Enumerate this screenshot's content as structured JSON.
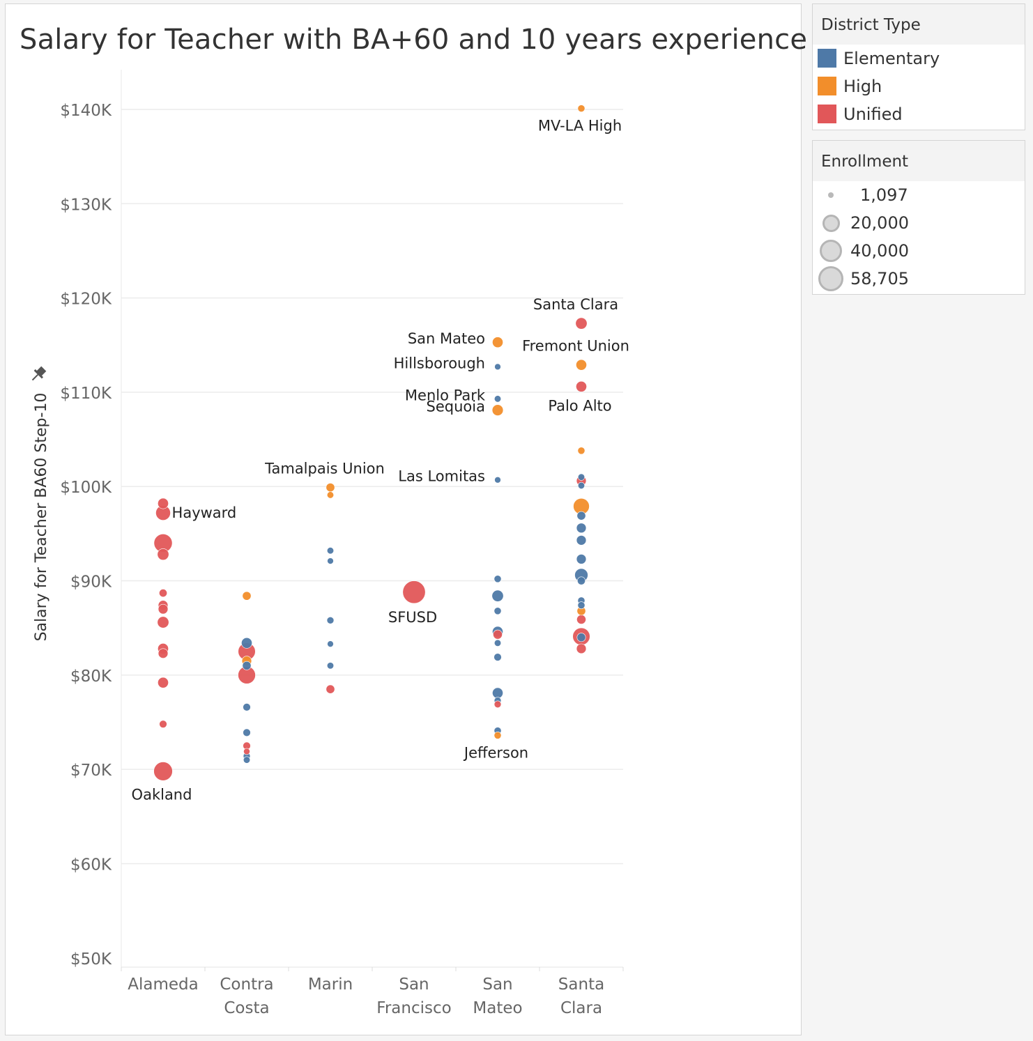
{
  "chart_data": {
    "type": "scatter",
    "title": "Salary for Teacher with BA+60 and 10 years experience",
    "ylabel": "Salary for Teacher BA60 Step-10",
    "xlabel": "",
    "ylim": [
      50000,
      142000
    ],
    "yticks": [
      50000,
      60000,
      70000,
      80000,
      90000,
      100000,
      110000,
      120000,
      130000,
      140000
    ],
    "ytick_labels": [
      "$50K",
      "$60K",
      "$70K",
      "$80K",
      "$90K",
      "$100K",
      "$110K",
      "$120K",
      "$130K",
      "$140K"
    ],
    "grid": true,
    "categories": [
      "Alameda",
      "Contra Costa",
      "Marin",
      "San Francisco",
      "San Mateo",
      "Santa Clara"
    ],
    "category_labels": [
      [
        "Alameda"
      ],
      [
        "Contra",
        "Costa"
      ],
      [
        "Marin"
      ],
      [
        "San",
        "Francisco"
      ],
      [
        "San",
        "Mateo"
      ],
      [
        "Santa",
        "Clara"
      ]
    ],
    "legend": {
      "color_title": "District Type",
      "types": [
        {
          "name": "Elementary",
          "color": "#4e79a7"
        },
        {
          "name": "High",
          "color": "#f28e2b"
        },
        {
          "name": "Unified",
          "color": "#e15759"
        }
      ],
      "size_title": "Enrollment",
      "sizes": [
        {
          "label": "1,097",
          "value": 1097
        },
        {
          "label": "20,000",
          "value": 20000
        },
        {
          "label": "40,000",
          "value": 40000
        },
        {
          "label": "58,705",
          "value": 58705
        }
      ],
      "placement": "right"
    },
    "points": [
      {
        "county": "Alameda",
        "type": "Unified",
        "salary": 98200,
        "enrollment": 8000
      },
      {
        "county": "Alameda",
        "type": "Unified",
        "salary": 97200,
        "enrollment": 20000,
        "label": "Hayward",
        "label_pos": "right"
      },
      {
        "county": "Alameda",
        "type": "Unified",
        "salary": 94000,
        "enrollment": 35000
      },
      {
        "county": "Alameda",
        "type": "Unified",
        "salary": 92800,
        "enrollment": 10000
      },
      {
        "county": "Alameda",
        "type": "Unified",
        "salary": 88700,
        "enrollment": 3000
      },
      {
        "county": "Alameda",
        "type": "Unified",
        "salary": 87400,
        "enrollment": 6000
      },
      {
        "county": "Alameda",
        "type": "Unified",
        "salary": 87000,
        "enrollment": 6000
      },
      {
        "county": "Alameda",
        "type": "Unified",
        "salary": 85600,
        "enrollment": 10000
      },
      {
        "county": "Alameda",
        "type": "Unified",
        "salary": 82800,
        "enrollment": 8000
      },
      {
        "county": "Alameda",
        "type": "Unified",
        "salary": 82300,
        "enrollment": 6000
      },
      {
        "county": "Alameda",
        "type": "Unified",
        "salary": 79200,
        "enrollment": 8000
      },
      {
        "county": "Alameda",
        "type": "Unified",
        "salary": 74800,
        "enrollment": 2500
      },
      {
        "county": "Alameda",
        "type": "Unified",
        "salary": 69800,
        "enrollment": 37000,
        "label": "Oakland",
        "label_pos": "below"
      },
      {
        "county": "Contra Costa",
        "type": "High",
        "salary": 88400,
        "enrollment": 4000
      },
      {
        "county": "Contra Costa",
        "type": "Elementary",
        "salary": 83400,
        "enrollment": 8000
      },
      {
        "county": "Contra Costa",
        "type": "Unified",
        "salary": 82500,
        "enrollment": 30000
      },
      {
        "county": "Contra Costa",
        "type": "High",
        "salary": 81500,
        "enrollment": 6000
      },
      {
        "county": "Contra Costa",
        "type": "Elementary",
        "salary": 81000,
        "enrollment": 4000
      },
      {
        "county": "Contra Costa",
        "type": "Unified",
        "salary": 80000,
        "enrollment": 31000
      },
      {
        "county": "Contra Costa",
        "type": "Elementary",
        "salary": 76600,
        "enrollment": 2500
      },
      {
        "county": "Contra Costa",
        "type": "Elementary",
        "salary": 73900,
        "enrollment": 2500
      },
      {
        "county": "Contra Costa",
        "type": "Unified",
        "salary": 72500,
        "enrollment": 2500
      },
      {
        "county": "Contra Costa",
        "type": "Unified",
        "salary": 71900,
        "enrollment": 1200
      },
      {
        "county": "Contra Costa",
        "type": "Elementary",
        "salary": 71400,
        "enrollment": 1800
      },
      {
        "county": "Contra Costa",
        "type": "Elementary",
        "salary": 71000,
        "enrollment": 1500
      },
      {
        "county": "Marin",
        "type": "High",
        "salary": 99900,
        "enrollment": 4000,
        "label": "Tamalpais Union",
        "label_pos": "above"
      },
      {
        "county": "Marin",
        "type": "High",
        "salary": 99100,
        "enrollment": 1500
      },
      {
        "county": "Marin",
        "type": "Elementary",
        "salary": 93200,
        "enrollment": 1500
      },
      {
        "county": "Marin",
        "type": "Elementary",
        "salary": 92100,
        "enrollment": 1097
      },
      {
        "county": "Marin",
        "type": "Elementary",
        "salary": 85800,
        "enrollment": 1800
      },
      {
        "county": "Marin",
        "type": "Elementary",
        "salary": 83300,
        "enrollment": 1097
      },
      {
        "county": "Marin",
        "type": "Elementary",
        "salary": 81000,
        "enrollment": 1500
      },
      {
        "county": "Marin",
        "type": "Unified",
        "salary": 78500,
        "enrollment": 4000
      },
      {
        "county": "San Francisco",
        "type": "Unified",
        "salary": 88800,
        "enrollment": 58705,
        "label": "SFUSD",
        "label_pos": "below"
      },
      {
        "county": "San Mateo",
        "type": "High",
        "salary": 115300,
        "enrollment": 8000,
        "label": "San Mateo",
        "label_pos": "left"
      },
      {
        "county": "San Mateo",
        "type": "Elementary",
        "salary": 112700,
        "enrollment": 1097,
        "label": "Hillsborough",
        "label_pos": "left"
      },
      {
        "county": "San Mateo",
        "type": "Elementary",
        "salary": 109300,
        "enrollment": 1500,
        "label": "Menlo Park",
        "label_pos": "left"
      },
      {
        "county": "San Mateo",
        "type": "High",
        "salary": 108100,
        "enrollment": 9000,
        "label": "Sequoia",
        "label_pos": "left"
      },
      {
        "county": "San Mateo",
        "type": "Elementary",
        "salary": 100700,
        "enrollment": 1097,
        "label": "Las Lomitas",
        "label_pos": "left"
      },
      {
        "county": "San Mateo",
        "type": "Elementary",
        "salary": 90200,
        "enrollment": 2000
      },
      {
        "county": "San Mateo",
        "type": "Elementary",
        "salary": 88400,
        "enrollment": 10000
      },
      {
        "county": "San Mateo",
        "type": "Elementary",
        "salary": 86800,
        "enrollment": 2000
      },
      {
        "county": "San Mateo",
        "type": "Unified",
        "salary": 84300,
        "enrollment": 5000
      },
      {
        "county": "San Mateo",
        "type": "Elementary",
        "salary": 84600,
        "enrollment": 8000
      },
      {
        "county": "San Mateo",
        "type": "Elementary",
        "salary": 83400,
        "enrollment": 1500
      },
      {
        "county": "San Mateo",
        "type": "Elementary",
        "salary": 81900,
        "enrollment": 2500
      },
      {
        "county": "San Mateo",
        "type": "Elementary",
        "salary": 78100,
        "enrollment": 8000
      },
      {
        "county": "San Mateo",
        "type": "Elementary",
        "salary": 77300,
        "enrollment": 1800
      },
      {
        "county": "San Mateo",
        "type": "Unified",
        "salary": 76900,
        "enrollment": 1800
      },
      {
        "county": "San Mateo",
        "type": "Elementary",
        "salary": 74100,
        "enrollment": 2000
      },
      {
        "county": "San Mateo",
        "type": "High",
        "salary": 73600,
        "enrollment": 2000,
        "label": "Jefferson",
        "label_pos": "below"
      },
      {
        "county": "Santa Clara",
        "type": "High",
        "salary": 140100,
        "enrollment": 2000,
        "label": "MV-LA High",
        "label_pos": "below"
      },
      {
        "county": "Santa Clara",
        "type": "Unified",
        "salary": 117300,
        "enrollment": 10000,
        "label": "Santa Clara",
        "label_pos": "above"
      },
      {
        "county": "Santa Clara",
        "type": "High",
        "salary": 112900,
        "enrollment": 8000,
        "label": "Fremont Union",
        "label_pos": "above"
      },
      {
        "county": "Santa Clara",
        "type": "Unified",
        "salary": 110600,
        "enrollment": 8000,
        "label": "Palo Alto",
        "label_pos": "below"
      },
      {
        "county": "Santa Clara",
        "type": "High",
        "salary": 103800,
        "enrollment": 2000
      },
      {
        "county": "Santa Clara",
        "type": "Elementary",
        "salary": 101000,
        "enrollment": 1500
      },
      {
        "county": "Santa Clara",
        "type": "Unified",
        "salary": 100600,
        "enrollment": 6000
      },
      {
        "county": "Santa Clara",
        "type": "Elementary",
        "salary": 100100,
        "enrollment": 1500
      },
      {
        "county": "Santa Clara",
        "type": "High",
        "salary": 97900,
        "enrollment": 25000
      },
      {
        "county": "Santa Clara",
        "type": "Elementary",
        "salary": 96900,
        "enrollment": 4000
      },
      {
        "county": "Santa Clara",
        "type": "Elementary",
        "salary": 95600,
        "enrollment": 6000
      },
      {
        "county": "Santa Clara",
        "type": "Elementary",
        "salary": 94300,
        "enrollment": 6000
      },
      {
        "county": "Santa Clara",
        "type": "Elementary",
        "salary": 92300,
        "enrollment": 6000
      },
      {
        "county": "Santa Clara",
        "type": "Elementary",
        "salary": 90600,
        "enrollment": 15000
      },
      {
        "county": "Santa Clara",
        "type": "Elementary",
        "salary": 90000,
        "enrollment": 3000
      },
      {
        "county": "Santa Clara",
        "type": "Elementary",
        "salary": 87900,
        "enrollment": 2000
      },
      {
        "county": "Santa Clara",
        "type": "Elementary",
        "salary": 87400,
        "enrollment": 2000
      },
      {
        "county": "Santa Clara",
        "type": "High",
        "salary": 86800,
        "enrollment": 4000
      },
      {
        "county": "Santa Clara",
        "type": "Unified",
        "salary": 85900,
        "enrollment": 5000
      },
      {
        "county": "Santa Clara",
        "type": "Unified",
        "salary": 84100,
        "enrollment": 30000
      },
      {
        "county": "Santa Clara",
        "type": "Elementary",
        "salary": 84000,
        "enrollment": 4000
      },
      {
        "county": "Santa Clara",
        "type": "Unified",
        "salary": 82800,
        "enrollment": 6000
      }
    ]
  }
}
